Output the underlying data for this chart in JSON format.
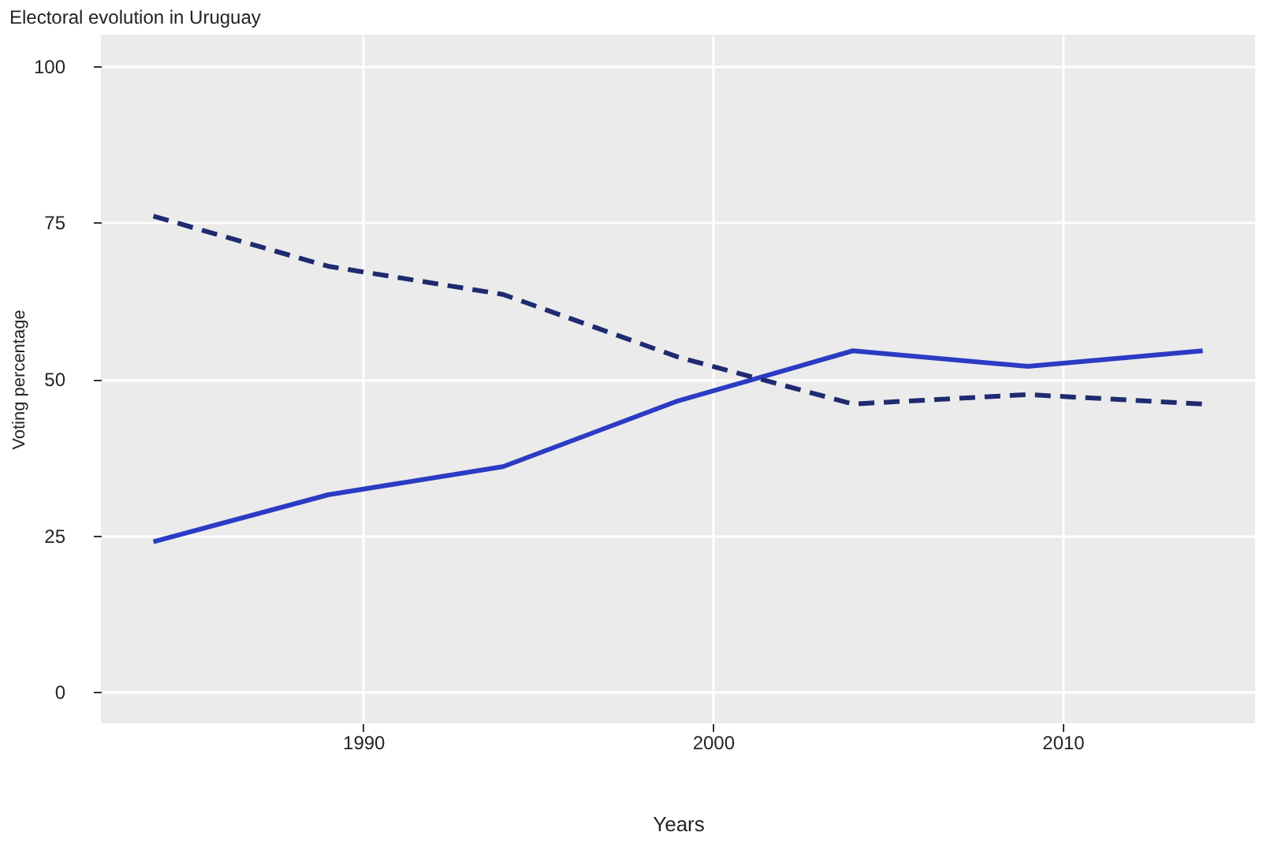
{
  "chart_data": {
    "type": "line",
    "title": "Electoral evolution in Uruguay",
    "xlabel": "Years",
    "ylabel": "Voting percentage",
    "x": [
      1984,
      1989,
      1994,
      1999,
      2004,
      2009,
      2014
    ],
    "series": [
      {
        "color": "#2b3bc4",
        "line_style": "solid",
        "values": [
          24,
          31.5,
          36,
          46.5,
          54.5,
          52,
          54.5
        ]
      },
      {
        "color": "#1f2a70",
        "line_style": "dashed",
        "values": [
          76,
          68,
          63.5,
          53.5,
          46,
          47.5,
          46
        ]
      }
    ],
    "xlim": [
      1982.5,
      2015.5
    ],
    "ylim": [
      -5,
      105
    ],
    "xticks": [
      1990,
      2000,
      2010
    ],
    "yticks": [
      0,
      25,
      50,
      75,
      100
    ],
    "grid": true
  }
}
